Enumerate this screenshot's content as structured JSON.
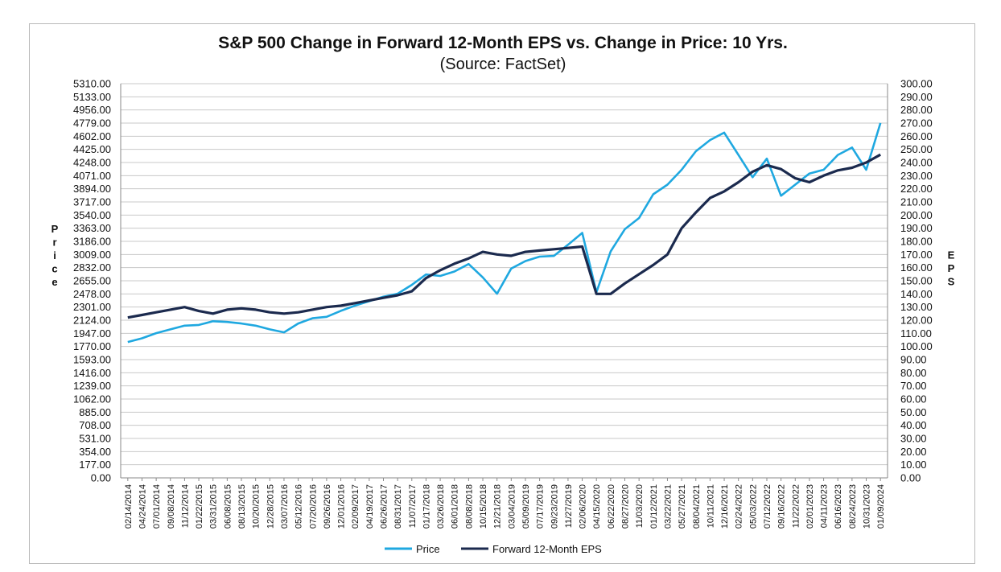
{
  "chart_data": {
    "type": "line",
    "title": "S&P 500 Change in Forward 12-Month EPS vs. Change in Price: 10 Yrs.",
    "subtitle": "(Source: FactSet)",
    "ylabel": "Price",
    "y2label": "EPS",
    "ylim": [
      0,
      5310
    ],
    "y2lim": [
      0,
      300
    ],
    "left_ticks": [
      "0.00",
      "177.00",
      "354.00",
      "531.00",
      "708.00",
      "885.00",
      "1062.00",
      "1239.00",
      "1416.00",
      "1593.00",
      "1770.00",
      "1947.00",
      "2124.00",
      "2301.00",
      "2478.00",
      "2655.00",
      "2832.00",
      "3009.00",
      "3186.00",
      "3363.00",
      "3540.00",
      "3717.00",
      "3894.00",
      "4071.00",
      "4248.00",
      "4425.00",
      "4602.00",
      "4779.00",
      "4956.00",
      "5133.00",
      "5310.00"
    ],
    "right_ticks": [
      "0.00",
      "10.00",
      "20.00",
      "30.00",
      "40.00",
      "50.00",
      "60.00",
      "70.00",
      "80.00",
      "90.00",
      "100.00",
      "110.00",
      "120.00",
      "130.00",
      "140.00",
      "150.00",
      "160.00",
      "170.00",
      "180.00",
      "190.00",
      "200.00",
      "210.00",
      "220.00",
      "230.00",
      "240.00",
      "250.00",
      "260.00",
      "270.00",
      "280.00",
      "290.00",
      "300.00"
    ],
    "x_labels": [
      "02/14/2014",
      "04/24/2014",
      "07/01/2014",
      "09/08/2014",
      "11/12/2014",
      "01/22/2015",
      "03/31/2015",
      "06/08/2015",
      "08/13/2015",
      "10/20/2015",
      "12/28/2015",
      "03/07/2016",
      "05/12/2016",
      "07/20/2016",
      "09/26/2016",
      "12/01/2016",
      "02/09/2017",
      "04/19/2017",
      "06/26/2017",
      "08/31/2017",
      "11/07/2017",
      "01/17/2018",
      "03/26/2018",
      "06/01/2018",
      "08/08/2018",
      "10/15/2018",
      "12/21/2018",
      "03/04/2019",
      "05/09/2019",
      "07/17/2019",
      "09/23/2019",
      "11/27/2019",
      "02/06/2020",
      "04/15/2020",
      "06/22/2020",
      "08/27/2020",
      "11/03/2020",
      "01/12/2021",
      "03/22/2021",
      "05/27/2021",
      "08/04/2021",
      "10/11/2021",
      "12/16/2021",
      "02/24/2022",
      "05/03/2022",
      "07/12/2022",
      "09/16/2022",
      "11/22/2022",
      "02/01/2023",
      "04/11/2023",
      "06/16/2023",
      "08/24/2023",
      "10/31/2023",
      "01/09/2024"
    ],
    "series": [
      {
        "name": "Price",
        "color": "#1fa8e0",
        "axis": "left",
        "values": [
          1830,
          1880,
          1950,
          2000,
          2050,
          2060,
          2110,
          2100,
          2080,
          2050,
          2000,
          1960,
          2080,
          2150,
          2170,
          2250,
          2320,
          2380,
          2440,
          2480,
          2600,
          2740,
          2720,
          2780,
          2880,
          2700,
          2480,
          2820,
          2920,
          2980,
          2990,
          3140,
          3300,
          2500,
          3050,
          3350,
          3500,
          3820,
          3950,
          4150,
          4400,
          4550,
          4650,
          4350,
          4050,
          4300,
          3800,
          3950,
          4100,
          4150,
          4350,
          4450,
          4150,
          4780
        ]
      },
      {
        "name": "Forward 12-Month EPS",
        "color": "#1b2a4e",
        "axis": "right",
        "values": [
          122,
          124,
          126,
          128,
          130,
          127,
          125,
          128,
          129,
          128,
          126,
          125,
          126,
          128,
          130,
          131,
          133,
          135,
          137,
          139,
          142,
          152,
          158,
          163,
          167,
          172,
          170,
          169,
          172,
          173,
          174,
          175,
          176,
          140,
          140,
          148,
          155,
          162,
          170,
          190,
          202,
          213,
          218,
          225,
          233,
          238,
          235,
          228,
          225,
          230,
          234,
          236,
          240,
          246
        ]
      }
    ]
  },
  "legend": {
    "price_label": "Price",
    "eps_label": "Forward 12-Month EPS"
  }
}
